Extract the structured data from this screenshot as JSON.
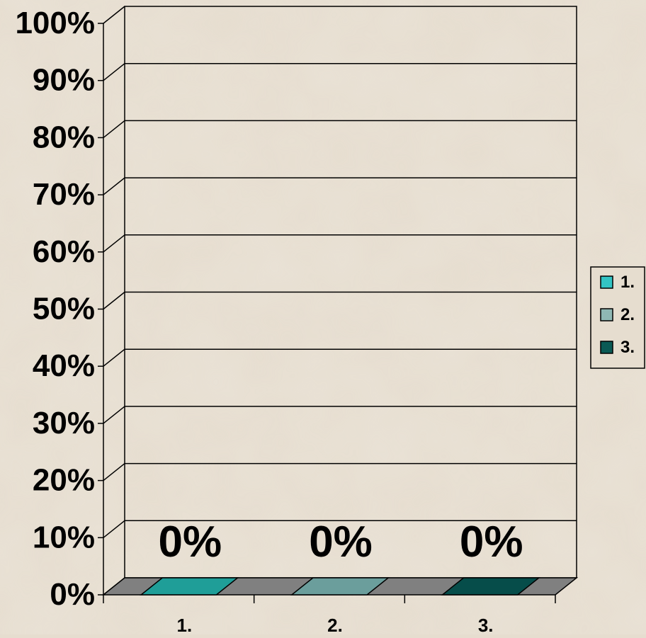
{
  "chart_data": {
    "type": "bar",
    "style": "3d-column",
    "categories": [
      "1.",
      "2.",
      "3."
    ],
    "series": [
      {
        "values": [
          0,
          0,
          0
        ]
      }
    ],
    "data_labels": [
      "0%",
      "0%",
      "0%"
    ],
    "bar_colors": [
      "#1f9e98",
      "#6b9e9c",
      "#064d4a"
    ],
    "y_ticks": [
      "0%",
      "10%",
      "20%",
      "30%",
      "40%",
      "50%",
      "60%",
      "70%",
      "80%",
      "90%",
      "100%"
    ],
    "ylim": [
      0,
      100
    ],
    "grid": true,
    "legend": {
      "placement": "right",
      "entries": [
        {
          "label": "1.",
          "color": "#33c4c4"
        },
        {
          "label": "2.",
          "color": "#8fb8b4"
        },
        {
          "label": "3.",
          "color": "#0a5a55"
        }
      ]
    },
    "colors": {
      "background": "#e6ddcf",
      "floor": "#808080",
      "gridline": "#000000"
    }
  }
}
